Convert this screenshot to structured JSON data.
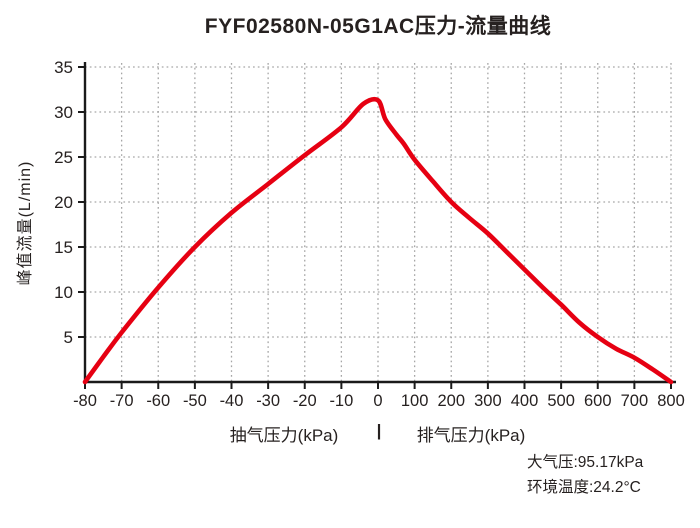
{
  "title": "FYF02580N-05G1AC压力-流量曲线",
  "chart_data": {
    "type": "line",
    "title": "FYF02580N-05G1AC压力-流量曲线",
    "ylabel": "峰值流量(L/min)",
    "xlabel_left": "抽气压力(kPa)",
    "xlabel_separator": "|",
    "xlabel_right": "排气压力(kPa)",
    "ylim": [
      0,
      35
    ],
    "yticks": [
      5,
      10,
      15,
      20,
      25,
      30,
      35
    ],
    "xticks": [
      -80,
      -70,
      -60,
      -50,
      -40,
      -30,
      -20,
      -10,
      0,
      100,
      200,
      300,
      400,
      500,
      600,
      700,
      800
    ],
    "x_axis_note": "piecewise linear axis: suction -80..0 kPa (10 kPa/div) and discharge 0..800 kPa (100 kPa/div) with equal tick spacing",
    "grid": "dotted",
    "legend_position": "none",
    "line_color": "#e60012",
    "series": [
      {
        "name": "峰值流量",
        "points": [
          [
            -80,
            0
          ],
          [
            -75,
            2.8
          ],
          [
            -70,
            5.5
          ],
          [
            -60,
            10.5
          ],
          [
            -50,
            15.0
          ],
          [
            -40,
            18.8
          ],
          [
            -30,
            22.0
          ],
          [
            -20,
            25.2
          ],
          [
            -10,
            28.3
          ],
          [
            -4,
            30.9
          ],
          [
            0,
            31.3
          ],
          [
            20,
            29.2
          ],
          [
            50,
            27.5
          ],
          [
            70,
            26.5
          ],
          [
            100,
            24.7
          ],
          [
            150,
            22.3
          ],
          [
            200,
            20.0
          ],
          [
            250,
            18.2
          ],
          [
            300,
            16.5
          ],
          [
            350,
            14.5
          ],
          [
            400,
            12.5
          ],
          [
            450,
            10.5
          ],
          [
            500,
            8.6
          ],
          [
            550,
            6.6
          ],
          [
            600,
            5.0
          ],
          [
            650,
            3.7
          ],
          [
            700,
            2.7
          ],
          [
            750,
            1.4
          ],
          [
            800,
            0
          ]
        ]
      }
    ]
  },
  "footer": {
    "atmosphere_label": "大气压:95.17kPa",
    "temperature_label": "环境温度:24.2°C"
  },
  "colors": {
    "curve": "#e60012",
    "axis": "#1a1a1a",
    "grid": "#a6a6a6",
    "text": "#262120",
    "background": "#ffffff"
  }
}
